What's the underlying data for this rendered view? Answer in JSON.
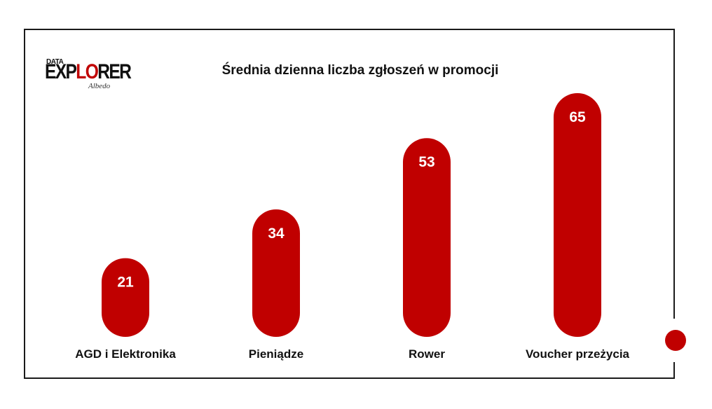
{
  "logo": {
    "small": "DATA",
    "main_pre": "EXP",
    "main_accent": "LO",
    "main_post": "RER",
    "sub": "Albedo"
  },
  "colors": {
    "bar": "#c00000",
    "text": "#111111",
    "label": "#ffffff"
  },
  "chart_data": {
    "type": "bar",
    "title": "Średnia dzienna liczba zgłoszeń w promocji",
    "categories": [
      "AGD i Elektronika",
      "Pieniądze",
      "Rower",
      "Voucher przeżycia"
    ],
    "values": [
      21,
      34,
      53,
      65
    ],
    "data_labels": [
      "21",
      "34",
      "53",
      "65"
    ],
    "xlabel": "",
    "ylabel": "",
    "ylim": [
      0,
      65
    ],
    "grid": false,
    "legend": "none"
  }
}
